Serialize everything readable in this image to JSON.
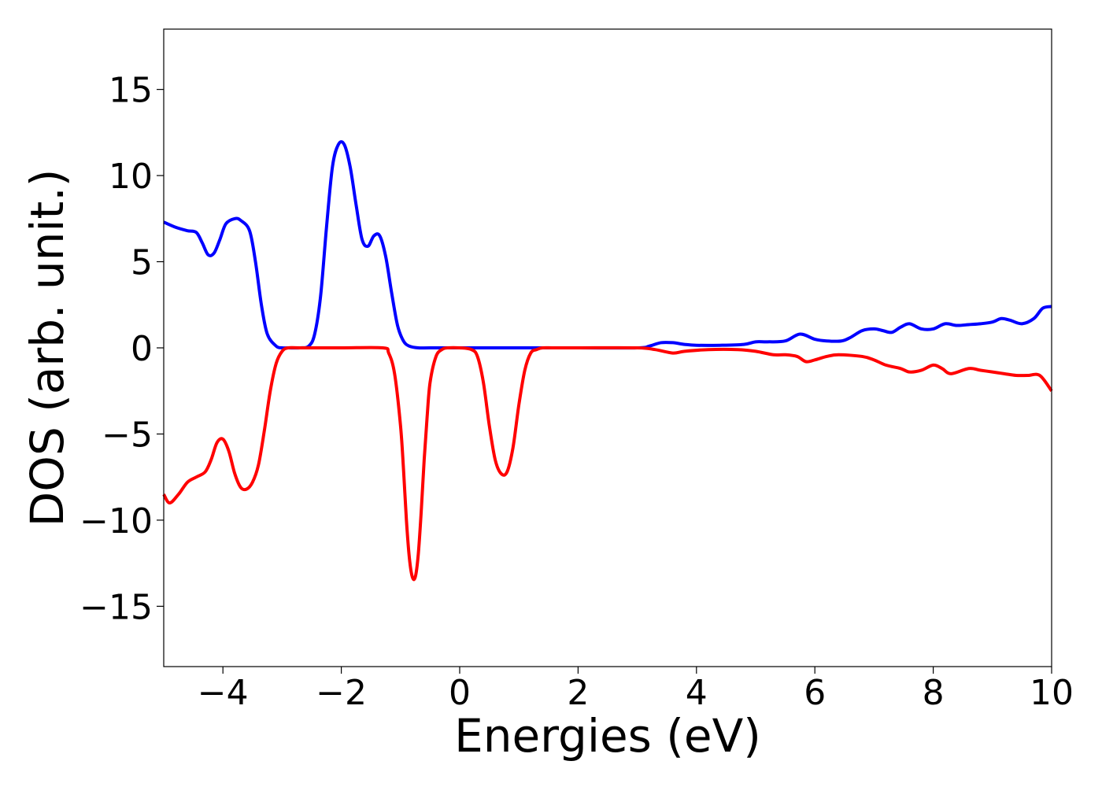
{
  "chart_data": {
    "type": "line",
    "xlabel": "Energies (eV)",
    "ylabel": "DOS (arb. unit.)",
    "xlim": [
      -5,
      10
    ],
    "ylim": [
      -18.5,
      18.5
    ],
    "xticks": [
      -4,
      -2,
      0,
      2,
      4,
      6,
      8,
      10
    ],
    "xtick_labels": [
      "−4",
      "−2",
      "0",
      "2",
      "4",
      "6",
      "8",
      "10"
    ],
    "yticks": [
      15,
      10,
      5,
      0,
      -5,
      -10,
      -15
    ],
    "ytick_labels": [
      "15",
      "10",
      "5",
      "0",
      "−5",
      "−10",
      "−15"
    ],
    "grid": false,
    "series": [
      {
        "color": "#0000ff",
        "x": [
          -5.0,
          -4.8,
          -4.6,
          -4.45,
          -4.35,
          -4.25,
          -4.15,
          -4.05,
          -3.95,
          -3.8,
          -3.7,
          -3.55,
          -3.45,
          -3.35,
          -3.25,
          -3.1,
          -3.0,
          -2.9,
          -2.7,
          -2.55,
          -2.45,
          -2.35,
          -2.25,
          -2.15,
          -2.05,
          -1.95,
          -1.85,
          -1.75,
          -1.65,
          -1.55,
          -1.45,
          -1.35,
          -1.25,
          -1.15,
          -1.05,
          -0.95,
          -0.85,
          -0.7,
          -0.5,
          0.0,
          1.0,
          2.0,
          3.0,
          3.2,
          3.4,
          3.6,
          3.8,
          4.0,
          4.4,
          4.8,
          5.0,
          5.2,
          5.5,
          5.75,
          6.0,
          6.2,
          6.45,
          6.6,
          6.8,
          7.0,
          7.15,
          7.3,
          7.45,
          7.6,
          7.8,
          8.0,
          8.2,
          8.4,
          8.6,
          8.8,
          9.0,
          9.15,
          9.3,
          9.5,
          9.7,
          9.85,
          10.0
        ],
        "y": [
          7.3,
          7.0,
          6.8,
          6.7,
          6.1,
          5.4,
          5.5,
          6.3,
          7.2,
          7.5,
          7.4,
          6.8,
          5.0,
          2.5,
          0.8,
          0.1,
          0.0,
          0.0,
          0.0,
          0.1,
          0.8,
          3.0,
          7.0,
          10.5,
          11.8,
          11.8,
          10.5,
          8.3,
          6.3,
          5.9,
          6.5,
          6.5,
          5.3,
          3.2,
          1.3,
          0.4,
          0.1,
          0.0,
          0.0,
          0.0,
          0.0,
          0.0,
          0.0,
          0.1,
          0.3,
          0.3,
          0.2,
          0.15,
          0.15,
          0.2,
          0.35,
          0.35,
          0.4,
          0.8,
          0.5,
          0.4,
          0.4,
          0.6,
          1.0,
          1.1,
          1.0,
          0.9,
          1.2,
          1.4,
          1.1,
          1.1,
          1.4,
          1.3,
          1.35,
          1.4,
          1.5,
          1.7,
          1.6,
          1.4,
          1.7,
          2.3,
          2.4
        ]
      },
      {
        "color": "#ff0000",
        "x": [
          -5.0,
          -4.9,
          -4.75,
          -4.6,
          -4.45,
          -4.3,
          -4.2,
          -4.1,
          -4.0,
          -3.9,
          -3.8,
          -3.7,
          -3.6,
          -3.5,
          -3.4,
          -3.3,
          -3.2,
          -3.1,
          -3.0,
          -2.9,
          -2.7,
          -2.0,
          -1.3,
          -1.2,
          -1.1,
          -1.0,
          -0.95,
          -0.9,
          -0.85,
          -0.8,
          -0.75,
          -0.7,
          -0.65,
          -0.6,
          -0.55,
          -0.5,
          -0.4,
          -0.3,
          -0.2,
          0.0,
          0.2,
          0.3,
          0.4,
          0.5,
          0.6,
          0.7,
          0.8,
          0.9,
          1.0,
          1.1,
          1.2,
          1.3,
          1.4,
          1.6,
          2.0,
          3.0,
          3.3,
          3.6,
          3.8,
          4.2,
          4.7,
          5.0,
          5.3,
          5.5,
          5.7,
          5.85,
          6.0,
          6.2,
          6.4,
          6.8,
          7.0,
          7.2,
          7.45,
          7.6,
          7.8,
          8.0,
          8.15,
          8.3,
          8.6,
          8.8,
          9.0,
          9.2,
          9.4,
          9.6,
          9.8,
          10.0
        ],
        "y": [
          -8.5,
          -9.0,
          -8.5,
          -7.8,
          -7.5,
          -7.2,
          -6.5,
          -5.5,
          -5.3,
          -6.0,
          -7.3,
          -8.1,
          -8.2,
          -7.8,
          -6.8,
          -4.8,
          -2.5,
          -0.9,
          -0.2,
          0.0,
          0.0,
          0.0,
          0.0,
          -0.3,
          -1.5,
          -4.5,
          -7.0,
          -10.0,
          -12.2,
          -13.3,
          -13.3,
          -12.0,
          -9.5,
          -6.5,
          -4.0,
          -2.0,
          -0.5,
          -0.1,
          0.0,
          0.0,
          -0.1,
          -0.5,
          -2.0,
          -4.5,
          -6.5,
          -7.3,
          -7.2,
          -5.8,
          -3.3,
          -1.3,
          -0.3,
          -0.1,
          0.0,
          0.0,
          0.0,
          0.0,
          -0.1,
          -0.3,
          -0.2,
          -0.1,
          -0.1,
          -0.2,
          -0.4,
          -0.4,
          -0.5,
          -0.8,
          -0.7,
          -0.5,
          -0.4,
          -0.5,
          -0.7,
          -1.0,
          -1.2,
          -1.4,
          -1.3,
          -1.0,
          -1.2,
          -1.5,
          -1.2,
          -1.3,
          -1.4,
          -1.5,
          -1.6,
          -1.6,
          -1.6,
          -2.5
        ]
      }
    ]
  }
}
